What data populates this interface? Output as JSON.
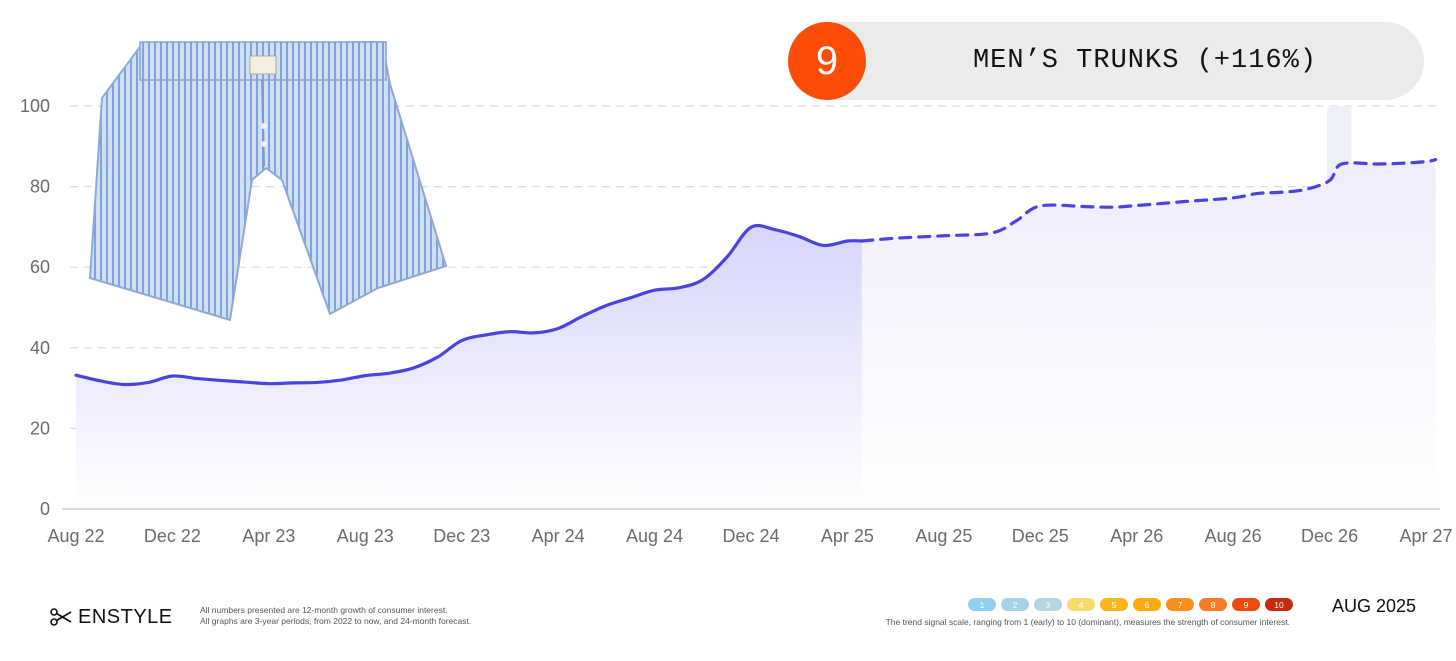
{
  "header": {
    "rank": "9",
    "title": "MEN’S TRUNKS (+116%)"
  },
  "colors": {
    "line": "#4a43e0",
    "fill": "#dad8fb",
    "forecast_fill": "#f3f2fd",
    "badge": "#fb4d07",
    "pill": "#ebebeb"
  },
  "chart_data": {
    "type": "line",
    "x_unit": "months since Aug 2022",
    "xlim": [
      0,
      56
    ],
    "ylim": [
      0,
      100
    ],
    "y_ticks": [
      0,
      20,
      40,
      60,
      80,
      100
    ],
    "x_ticks": [
      {
        "x": 0,
        "label": "Aug 22"
      },
      {
        "x": 4,
        "label": "Dec 22"
      },
      {
        "x": 8,
        "label": "Apr 23"
      },
      {
        "x": 12,
        "label": "Aug 23"
      },
      {
        "x": 16,
        "label": "Dec 23"
      },
      {
        "x": 20,
        "label": "Apr 24"
      },
      {
        "x": 24,
        "label": "Aug 24"
      },
      {
        "x": 28,
        "label": "Dec 24"
      },
      {
        "x": 32,
        "label": "Apr 25"
      },
      {
        "x": 36,
        "label": "Aug 25"
      },
      {
        "x": 40,
        "label": "Dec 25"
      },
      {
        "x": 44,
        "label": "Apr 26"
      },
      {
        "x": 48,
        "label": "Aug 26"
      },
      {
        "x": 52,
        "label": "Dec 26"
      },
      {
        "x": 56,
        "label": "Apr 27"
      }
    ],
    "grid": "horizontal dashed",
    "series": [
      {
        "style": "solid",
        "points": [
          [
            0,
            33.2
          ],
          [
            1,
            31.8
          ],
          [
            2,
            30.9
          ],
          [
            3,
            31.4
          ],
          [
            4,
            33.0
          ],
          [
            5,
            32.4
          ],
          [
            6,
            31.9
          ],
          [
            7,
            31.5
          ],
          [
            8,
            31.1
          ],
          [
            9,
            31.3
          ],
          [
            10,
            31.4
          ],
          [
            11,
            32.0
          ],
          [
            12,
            33.1
          ],
          [
            13,
            33.7
          ],
          [
            14,
            35.0
          ],
          [
            15,
            37.7
          ],
          [
            16,
            41.8
          ],
          [
            17,
            43.2
          ],
          [
            18,
            44.0
          ],
          [
            19,
            43.7
          ],
          [
            20,
            44.8
          ],
          [
            21,
            47.8
          ],
          [
            22,
            50.5
          ],
          [
            23,
            52.4
          ],
          [
            24,
            54.3
          ],
          [
            25,
            54.9
          ],
          [
            26,
            56.9
          ],
          [
            27,
            62.5
          ],
          [
            28,
            69.9
          ],
          [
            29,
            69.3
          ],
          [
            30,
            67.6
          ],
          [
            31,
            65.4
          ],
          [
            32,
            66.5
          ],
          [
            32.6,
            66.5
          ]
        ]
      },
      {
        "style": "dashed",
        "points": [
          [
            32.6,
            66.5
          ],
          [
            34,
            67.2
          ],
          [
            36,
            67.8
          ],
          [
            38,
            68.5
          ],
          [
            39,
            71.5
          ],
          [
            40,
            75.2
          ],
          [
            42,
            75.0
          ],
          [
            43,
            74.9
          ],
          [
            44,
            75.3
          ],
          [
            46,
            76.3
          ],
          [
            48,
            77.2
          ],
          [
            49,
            78.3
          ],
          [
            50,
            78.6
          ],
          [
            51,
            79.3
          ],
          [
            52,
            81.5
          ],
          [
            52.5,
            85.6
          ],
          [
            54,
            85.6
          ],
          [
            55,
            85.8
          ],
          [
            56,
            86.2
          ],
          [
            56.4,
            86.7
          ]
        ]
      }
    ],
    "highlight_band": [
      51.9,
      52.9
    ]
  },
  "footer": {
    "brand": "ENSTYLE",
    "note_line1": "All numbers presented are 12-month growth of consumer interest.",
    "note_line2": "All graphs are 3-year periods, from 2022 to now, and 24-month forecast.",
    "scale": [
      {
        "label": "1",
        "color": "#8fd0ee"
      },
      {
        "label": "2",
        "color": "#a6d2e8"
      },
      {
        "label": "3",
        "color": "#b4d6e2"
      },
      {
        "label": "4",
        "color": "#f7dc6c"
      },
      {
        "label": "5",
        "color": "#f9b61a"
      },
      {
        "label": "6",
        "color": "#fbaa0f"
      },
      {
        "label": "7",
        "color": "#f98e1d"
      },
      {
        "label": "8",
        "color": "#f77a26"
      },
      {
        "label": "9",
        "color": "#ee4a0d"
      },
      {
        "label": "10",
        "color": "#c8290f"
      }
    ],
    "scale_note": "The trend signal scale, ranging from 1 (early) to 10 (dominant), measures the strength of consumer interest.",
    "date": "AUG 2025"
  }
}
